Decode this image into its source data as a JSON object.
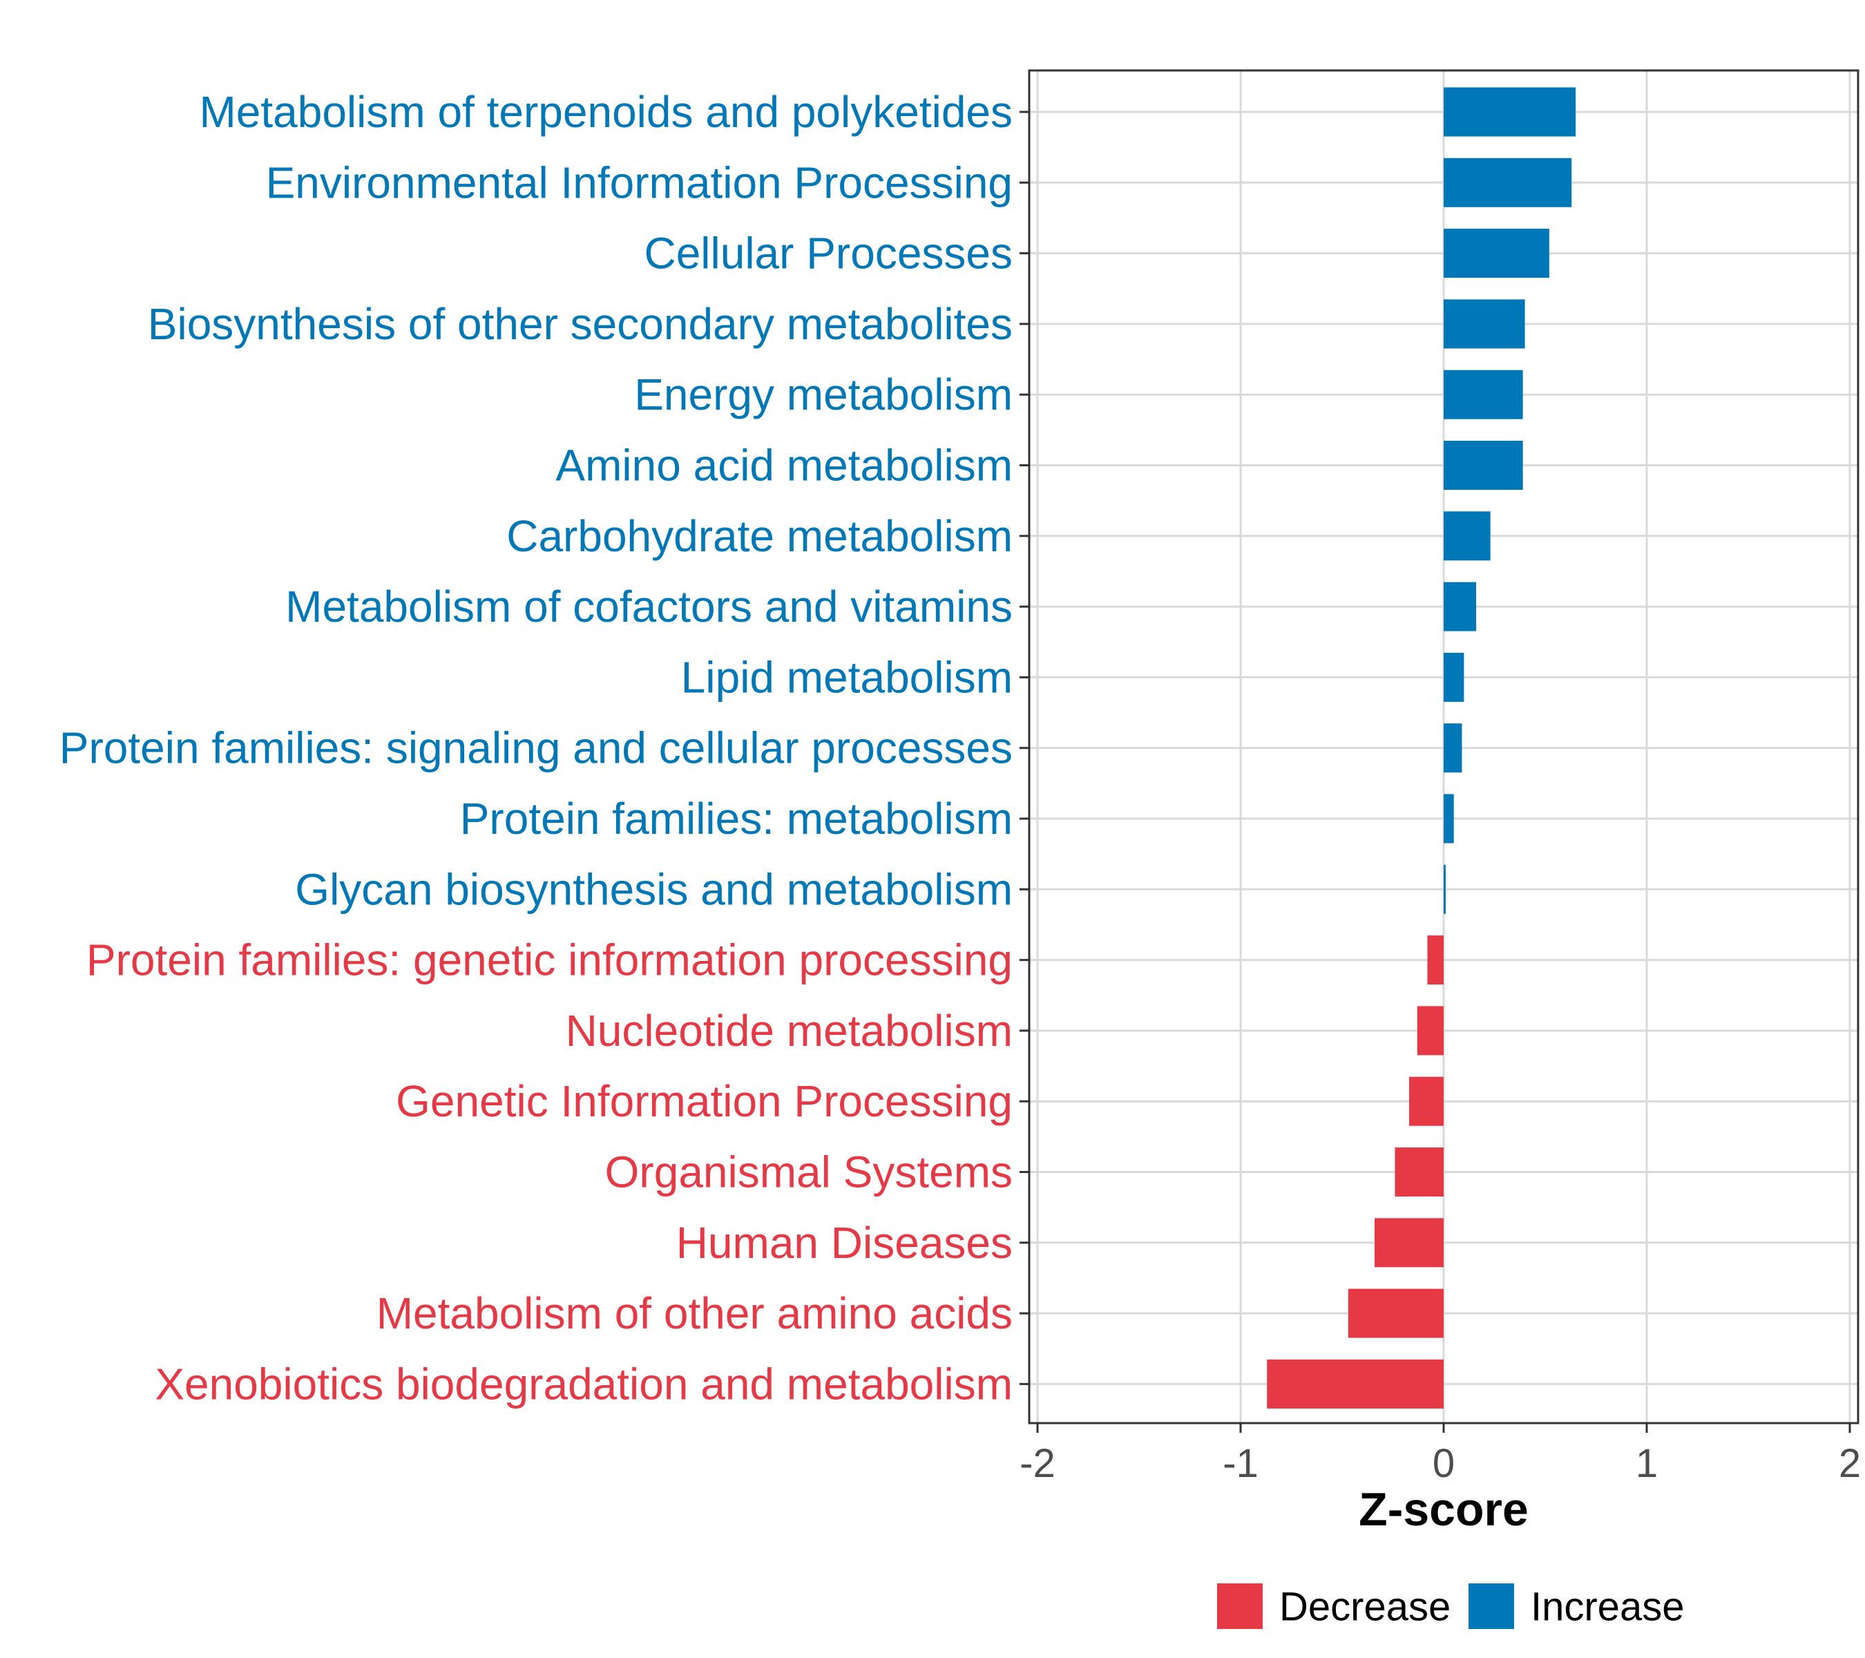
{
  "colors": {
    "decrease": "#E63946",
    "increase": "#0077B6",
    "grid": "#D9D9D9",
    "panel_border": "#333333",
    "tick_text": "#4D4D4D"
  },
  "chart_data": {
    "type": "bar",
    "orientation": "horizontal",
    "title": "",
    "xlabel": "Z-score",
    "ylabel": "",
    "xlim": [
      -2,
      2
    ],
    "xticks": [
      -2,
      -1,
      0,
      1,
      2
    ],
    "xtick_labels": [
      "-2",
      "-1",
      "0",
      "1",
      "2"
    ],
    "grid": true,
    "legend_position": "bottom",
    "legend": [
      {
        "key": "decrease",
        "label": "Decrease"
      },
      {
        "key": "increase",
        "label": "Increase"
      }
    ],
    "categories": [
      "Metabolism of terpenoids and polyketides",
      "Environmental Information Processing",
      "Cellular Processes",
      "Biosynthesis of other secondary metabolites",
      "Energy metabolism",
      "Amino acid metabolism",
      "Carbohydrate metabolism",
      "Metabolism of cofactors and vitamins",
      "Lipid metabolism",
      "Protein families: signaling and cellular processes",
      "Protein families: metabolism",
      "Glycan biosynthesis and metabolism",
      "Protein families: genetic information processing",
      "Nucleotide metabolism",
      "Genetic Information Processing",
      "Organismal Systems",
      "Human Diseases",
      "Metabolism of other amino acids",
      "Xenobiotics biodegradation and metabolism"
    ],
    "values": [
      0.65,
      0.63,
      0.52,
      0.4,
      0.39,
      0.39,
      0.23,
      0.16,
      0.1,
      0.09,
      0.05,
      0.01,
      -0.08,
      -0.13,
      -0.17,
      -0.24,
      -0.34,
      -0.47,
      -0.87
    ],
    "groups": [
      "increase",
      "increase",
      "increase",
      "increase",
      "increase",
      "increase",
      "increase",
      "increase",
      "increase",
      "increase",
      "increase",
      "increase",
      "decrease",
      "decrease",
      "decrease",
      "decrease",
      "decrease",
      "decrease",
      "decrease"
    ]
  }
}
